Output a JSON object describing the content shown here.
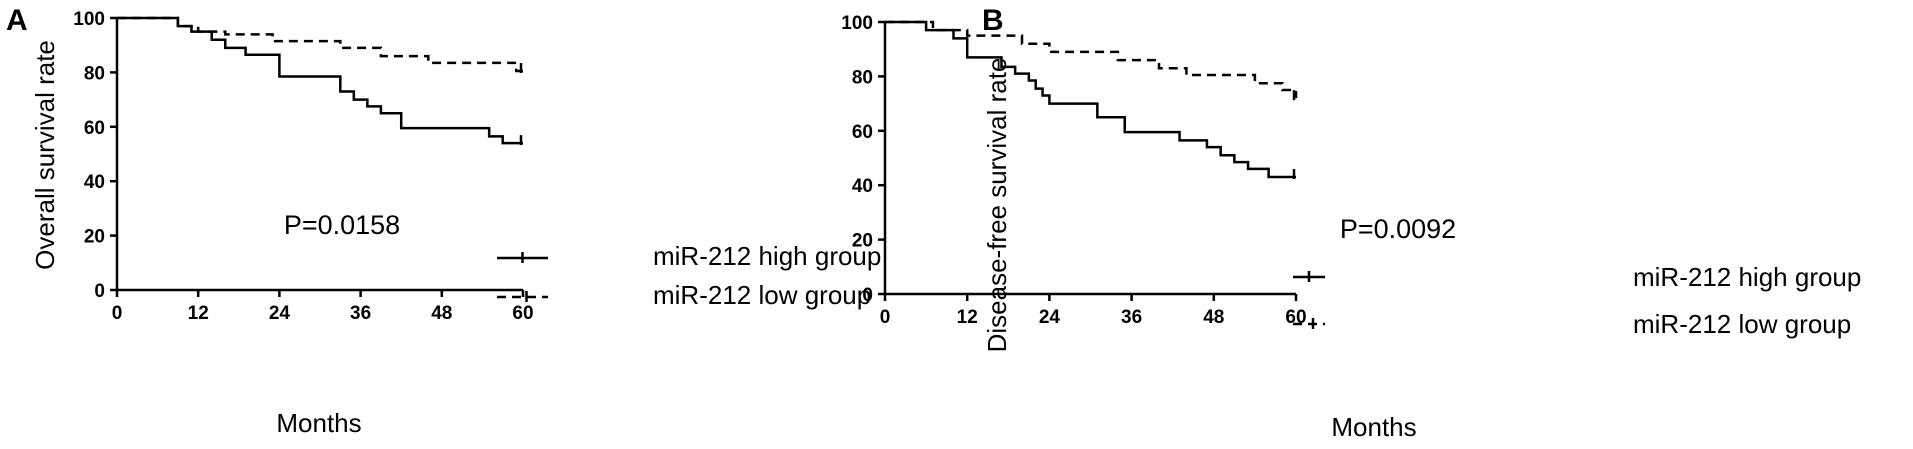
{
  "chart_data": [
    {
      "type": "line",
      "panel_label": "A",
      "xlabel": "Months",
      "ylabel": "Overall survival rate",
      "xlim": [
        0,
        60
      ],
      "ylim": [
        0,
        100
      ],
      "xticks": [
        "0",
        "12",
        "24",
        "36",
        "48",
        "60"
      ],
      "yticks": [
        "0",
        "20",
        "40",
        "60",
        "80",
        "100"
      ],
      "annotation": "P=0.0158",
      "legend_placement": "center-right",
      "series": [
        {
          "name": "miR-212 high group",
          "dash": "solid",
          "x": [
            0,
            9,
            11,
            14,
            16,
            19,
            24,
            33,
            35,
            37,
            39,
            42,
            55,
            57,
            60
          ],
          "y": [
            100,
            97,
            95,
            92,
            89,
            86.5,
            78.5,
            73,
            70,
            67.5,
            65,
            59.5,
            56.5,
            54,
            54
          ],
          "censor_x": [
            60
          ]
        },
        {
          "name": "miR-212 low group",
          "dash": "dashed",
          "x": [
            0,
            9,
            12,
            16,
            23,
            33,
            39,
            46,
            59,
            60
          ],
          "y": [
            100,
            97,
            95,
            94,
            91.5,
            89,
            86,
            83.5,
            80.5,
            80.5
          ],
          "censor_x": [
            60
          ]
        }
      ]
    },
    {
      "type": "line",
      "panel_label": "B",
      "xlabel": "Months",
      "ylabel": "Disease-free survival rate",
      "xlim": [
        0,
        60
      ],
      "ylim": [
        0,
        100
      ],
      "xticks": [
        "0",
        "12",
        "24",
        "36",
        "48",
        "60"
      ],
      "yticks": [
        "0",
        "20",
        "40",
        "60",
        "80",
        "100"
      ],
      "annotation": "P=0.0092",
      "legend_placement": "lower-right",
      "series": [
        {
          "name": "miR-212 high group",
          "dash": "solid",
          "x": [
            0,
            6,
            10,
            12,
            17,
            19,
            21,
            22,
            23,
            24,
            26,
            31,
            35,
            43,
            47,
            49,
            50,
            51,
            53,
            56,
            58,
            60
          ],
          "y": [
            100,
            97,
            94,
            87,
            83.5,
            81,
            78.5,
            75.5,
            73,
            70,
            70,
            65,
            59.5,
            56.5,
            54,
            51,
            51,
            48.5,
            46,
            43,
            43,
            43
          ],
          "censor_x": [
            60
          ]
        },
        {
          "name": "miR-212 low group",
          "dash": "dashed",
          "x": [
            0,
            7,
            12,
            20,
            24,
            34,
            40,
            44,
            54,
            58,
            60
          ],
          "y": [
            100,
            97,
            95,
            92,
            89,
            86,
            83,
            80.5,
            77.5,
            75,
            72
          ],
          "censor_x": [
            60
          ]
        }
      ]
    }
  ]
}
